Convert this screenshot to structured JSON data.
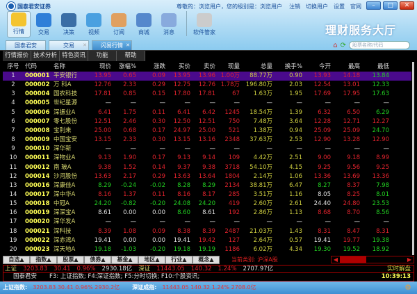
{
  "app": {
    "logo_text": "国泰君安证券",
    "welcome": "尊敬的：浏览用户，您的级别是：浏览用户",
    "links": [
      "注销",
      "切换用户",
      "设置",
      "官网"
    ],
    "slogan": "理财服务大厅"
  },
  "toolbar": [
    "行情",
    "交易",
    "决策",
    "视频",
    "订阅",
    "商城",
    "消息",
    "软件管家"
  ],
  "toolbar_icon_colors": [
    "#f4c430",
    "#2f7fd8",
    "#3a6ea5",
    "#4aa0e0",
    "#e0a060",
    "#5588cc",
    "#88aadd",
    "#cccccc"
  ],
  "tabs": [
    {
      "label": "国泰君安"
    },
    {
      "label": "交易"
    },
    {
      "label": "闪易行情",
      "active": true
    }
  ],
  "search": {
    "placeholder": "股票名称/代码"
  },
  "menu": [
    "行情报价",
    "技术分析",
    "特色资讯",
    "功能",
    "帮助"
  ],
  "table": {
    "headers": [
      "序号",
      "代码",
      "名称",
      "现价",
      "涨幅%",
      "涨跌",
      "买价",
      "卖价",
      "现量",
      "总量",
      "换手%",
      "今开",
      "最高",
      "最低"
    ],
    "rows": [
      {
        "v": [
          "1",
          "000001",
          "平安银行",
          "13.95",
          "0.65",
          "0.09",
          "13.95",
          "13.96",
          "1.00万",
          "88.77万",
          "0.90",
          "13.93",
          "14.18",
          "13.84"
        ],
        "c": "rrrrrryyrrg",
        "selected": true
      },
      {
        "v": [
          "2",
          "000002",
          "万  科A",
          "12.76",
          "2.33",
          "0.29",
          "12.75",
          "12.76",
          "1.78万",
          "196.80万",
          "2.03",
          "12.54",
          "13.01",
          "12.33"
        ],
        "c": "rrrrrryyrrg"
      },
      {
        "v": [
          "3",
          "000004",
          "国农科技",
          "17.81",
          "0.85",
          "0.15",
          "17.80",
          "17.81",
          "67",
          "1.63万",
          "1.95",
          "17.69",
          "17.95",
          "17.63"
        ],
        "c": "rrrrrryyrrg"
      },
      {
        "v": [
          "4",
          "000005",
          "世纪星源",
          "—",
          "—",
          "—",
          "—",
          "—",
          "—",
          "—",
          "—",
          "—",
          "—",
          "—"
        ],
        "c": "wwwwwwwwwww"
      },
      {
        "v": [
          "5",
          "000006",
          "深振业A",
          "6.41",
          "1.75",
          "0.11",
          "6.41",
          "6.42",
          "1245",
          "18.54万",
          "1.39",
          "6.32",
          "6.50",
          "6.29"
        ],
        "c": "rrrrrryyrrg"
      },
      {
        "v": [
          "6",
          "000007",
          "零七股份",
          "12.51",
          "2.46",
          "0.30",
          "12.50",
          "12.51",
          "750",
          "7.48万",
          "3.64",
          "12.28",
          "12.71",
          "12.27"
        ],
        "c": "rrrrrryyrrr"
      },
      {
        "v": [
          "7",
          "000008",
          "宝利来",
          "25.00",
          "0.68",
          "0.17",
          "24.97",
          "25.00",
          "521",
          "1.38万",
          "0.94",
          "25.09",
          "25.09",
          "24.70"
        ],
        "c": "rrrrrryyrrg"
      },
      {
        "v": [
          "8",
          "000009",
          "中国宝安",
          "13.15",
          "2.33",
          "0.30",
          "13.15",
          "13.16",
          "2348",
          "37.63万",
          "2.53",
          "12.90",
          "13.28",
          "12.90"
        ],
        "c": "rrrrrryyrrr"
      },
      {
        "v": [
          "9",
          "000010",
          "深华新",
          "—",
          "—",
          "—",
          "—",
          "—",
          "—",
          "—",
          "—",
          "—",
          "—",
          "—"
        ],
        "c": "wwwwwwwwwww"
      },
      {
        "v": [
          "10",
          "000011",
          "深物业A",
          "9.13",
          "1.90",
          "0.17",
          "9.13",
          "9.14",
          "109",
          "4.42万",
          "2.51",
          "9.00",
          "9.18",
          "8.99"
        ],
        "c": "rrrrrryyrrr"
      },
      {
        "v": [
          "11",
          "000012",
          "南  玻A",
          "9.38",
          "1.52",
          "0.14",
          "9.37",
          "9.38",
          "3718",
          "54.10万",
          "4.15",
          "9.25",
          "9.56",
          "9.25"
        ],
        "c": "rrrrrryyrrr"
      },
      {
        "v": [
          "12",
          "000014",
          "沙河股份",
          "13.63",
          "2.17",
          "0.29",
          "13.63",
          "13.64",
          "1804",
          "2.14万",
          "1.06",
          "13.36",
          "13.69",
          "13.36"
        ],
        "c": "rrrrrryyrrr"
      },
      {
        "v": [
          "13",
          "000016",
          "深康佳A",
          "8.29",
          "-0.24",
          "-0.02",
          "8.28",
          "8.29",
          "2134",
          "38.81万",
          "6.47",
          "8.27",
          "8.37",
          "7.98"
        ],
        "c": "gggggryygrg"
      },
      {
        "v": [
          "14",
          "000017",
          "深中华A",
          "8.16",
          "1.37",
          "0.11",
          "8.16",
          "8.17",
          "285",
          "3.51万",
          "1.16",
          "8.05",
          "8.25",
          "8.01"
        ],
        "c": "rrrrrryywrg"
      },
      {
        "v": [
          "15",
          "000018",
          "中冠A",
          "24.20",
          "-0.82",
          "-0.20",
          "24.08",
          "24.20",
          "419",
          "2.60万",
          "2.61",
          "24.40",
          "24.80",
          "23.53"
        ],
        "c": "gggggryywrg"
      },
      {
        "v": [
          "16",
          "000019",
          "深深宝A",
          "8.61",
          "0.00",
          "0.00",
          "8.60",
          "8.61",
          "192",
          "2.86万",
          "1.13",
          "8.68",
          "8.70",
          "8.56"
        ],
        "c": "wwwgwryyrrg"
      },
      {
        "v": [
          "17",
          "000020",
          "深华发A",
          "—",
          "—",
          "—",
          "—",
          "—",
          "—",
          "—",
          "—",
          "—",
          "—",
          "—"
        ],
        "c": "wwwwwwwwwww"
      },
      {
        "v": [
          "18",
          "000021",
          "深科技",
          "8.39",
          "1.08",
          "0.09",
          "8.38",
          "8.39",
          "2487",
          "21.03万",
          "1.43",
          "8.31",
          "8.47",
          "8.31"
        ],
        "c": "rrrrrryyrrr"
      },
      {
        "v": [
          "19",
          "000022",
          "深赤湾A",
          "19.41",
          "0.00",
          "0.00",
          "19.41",
          "19.42",
          "127",
          "2.64万",
          "0.57",
          "19.41",
          "19.77",
          "19.38"
        ],
        "c": "wwwwrryywrg"
      },
      {
        "v": [
          "20",
          "000023",
          "深天地A",
          "19.18",
          "-1.03",
          "-0.20",
          "19.18",
          "19.19",
          "1186",
          "6.02万",
          "4.34",
          "19.30",
          "19.52",
          "18.92"
        ],
        "c": "gggggryyggg"
      }
    ]
  },
  "categories": [
    "自选▲",
    "指数▲",
    "股票▲",
    "债券▲",
    "基金▲",
    "地区▲",
    "行业▲",
    "概念▲"
  ],
  "current_category": "当前类别: 沪深A股",
  "index_bar": {
    "sh_label": "上证",
    "sh_value": "3203.83",
    "sh_change": "30.41",
    "sh_pct": "0.96%",
    "sh_amount": "2930.18亿",
    "sz_label": "深证",
    "sz_value": "11443.05",
    "sz_change": "140.32",
    "sz_pct": "1.24%",
    "sz_amount": "2707.97亿",
    "mode": "实时解盘"
  },
  "status": {
    "broker": "国泰君安",
    "hotkeys": "F3: 上证指数; F4:深证指数; F5:分时切换; F10:个股资讯;",
    "time": "10:39:13"
  },
  "footer": {
    "sh_label": "上证指数:",
    "sh": "3203.83   30.41   0.96%   2930.2亿",
    "sz_label": "深证成指:",
    "sz": "11443.05   140.32   1.24%   2708.0亿"
  },
  "colors": {
    "up": "#e3232d",
    "down": "#22d022",
    "flat": "#e0e0e0",
    "volume": "#d0d040",
    "selected_row": "#4a0a8c"
  }
}
